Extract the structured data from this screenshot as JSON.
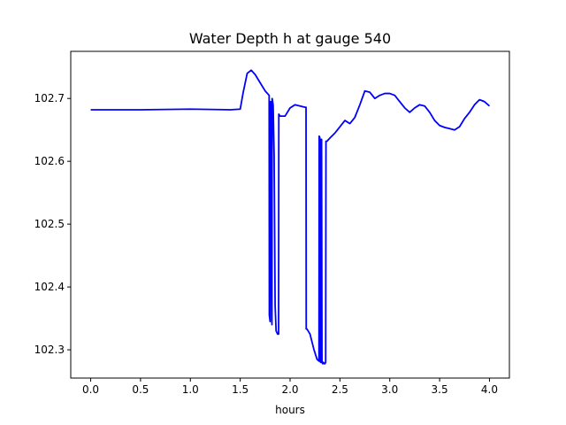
{
  "chart_data": {
    "type": "line",
    "title": "Water Depth h at gauge 540",
    "xlabel": "hours",
    "ylabel": "",
    "xlim": [
      -0.2,
      4.2
    ],
    "ylim": [
      102.255,
      102.775
    ],
    "xticks": [
      0.0,
      0.5,
      1.0,
      1.5,
      2.0,
      2.5,
      3.0,
      3.5,
      4.0
    ],
    "xtick_labels": [
      "0.0",
      "0.5",
      "1.0",
      "1.5",
      "2.0",
      "2.5",
      "3.0",
      "3.5",
      "4.0"
    ],
    "yticks": [
      102.3,
      102.4,
      102.5,
      102.6,
      102.7
    ],
    "ytick_labels": [
      "102.3",
      "102.4",
      "102.5",
      "102.6",
      "102.7"
    ],
    "grid": false,
    "legend": "none",
    "series": [
      {
        "color": "#0000ff",
        "x": [
          0.0,
          0.5,
          1.0,
          1.4,
          1.5,
          1.53,
          1.57,
          1.61,
          1.65,
          1.7,
          1.75,
          1.79,
          1.792,
          1.8,
          1.805,
          1.81,
          1.818,
          1.82,
          1.83,
          1.84,
          1.85,
          1.86,
          1.875,
          1.885,
          1.887,
          1.9,
          1.95,
          2.0,
          2.05,
          2.1,
          2.15,
          2.16,
          2.162,
          2.17,
          2.2,
          2.24,
          2.27,
          2.29,
          2.292,
          2.298,
          2.3,
          2.308,
          2.31,
          2.316,
          2.32,
          2.326,
          2.33,
          2.336,
          2.338,
          2.35,
          2.357,
          2.36,
          2.37,
          2.4,
          2.45,
          2.5,
          2.55,
          2.6,
          2.65,
          2.7,
          2.75,
          2.8,
          2.85,
          2.9,
          2.95,
          3.0,
          3.05,
          3.1,
          3.15,
          3.2,
          3.25,
          3.3,
          3.35,
          3.4,
          3.45,
          3.5,
          3.55,
          3.6,
          3.65,
          3.7,
          3.75,
          3.8,
          3.85,
          3.9,
          3.95,
          4.0
        ],
        "values": [
          102.682,
          102.682,
          102.683,
          102.682,
          102.683,
          102.71,
          102.74,
          102.745,
          102.738,
          102.725,
          102.712,
          102.705,
          102.355,
          102.345,
          102.695,
          102.69,
          102.34,
          102.7,
          102.69,
          102.61,
          102.37,
          102.33,
          102.325,
          102.325,
          102.675,
          102.672,
          102.672,
          102.685,
          102.69,
          102.688,
          102.686,
          102.686,
          102.333,
          102.333,
          102.325,
          102.3,
          102.285,
          102.282,
          102.64,
          102.638,
          102.282,
          102.28,
          102.635,
          102.635,
          102.28,
          102.278,
          102.28,
          102.28,
          102.278,
          102.278,
          102.28,
          102.632,
          102.632,
          102.637,
          102.645,
          102.655,
          102.665,
          102.66,
          102.67,
          102.69,
          102.712,
          102.71,
          102.7,
          102.705,
          102.708,
          102.708,
          102.705,
          102.695,
          102.685,
          102.678,
          102.685,
          102.69,
          102.688,
          102.678,
          102.665,
          102.657,
          102.654,
          102.652,
          102.65,
          102.655,
          102.668,
          102.678,
          102.69,
          102.698,
          102.695,
          102.688
        ]
      }
    ]
  }
}
